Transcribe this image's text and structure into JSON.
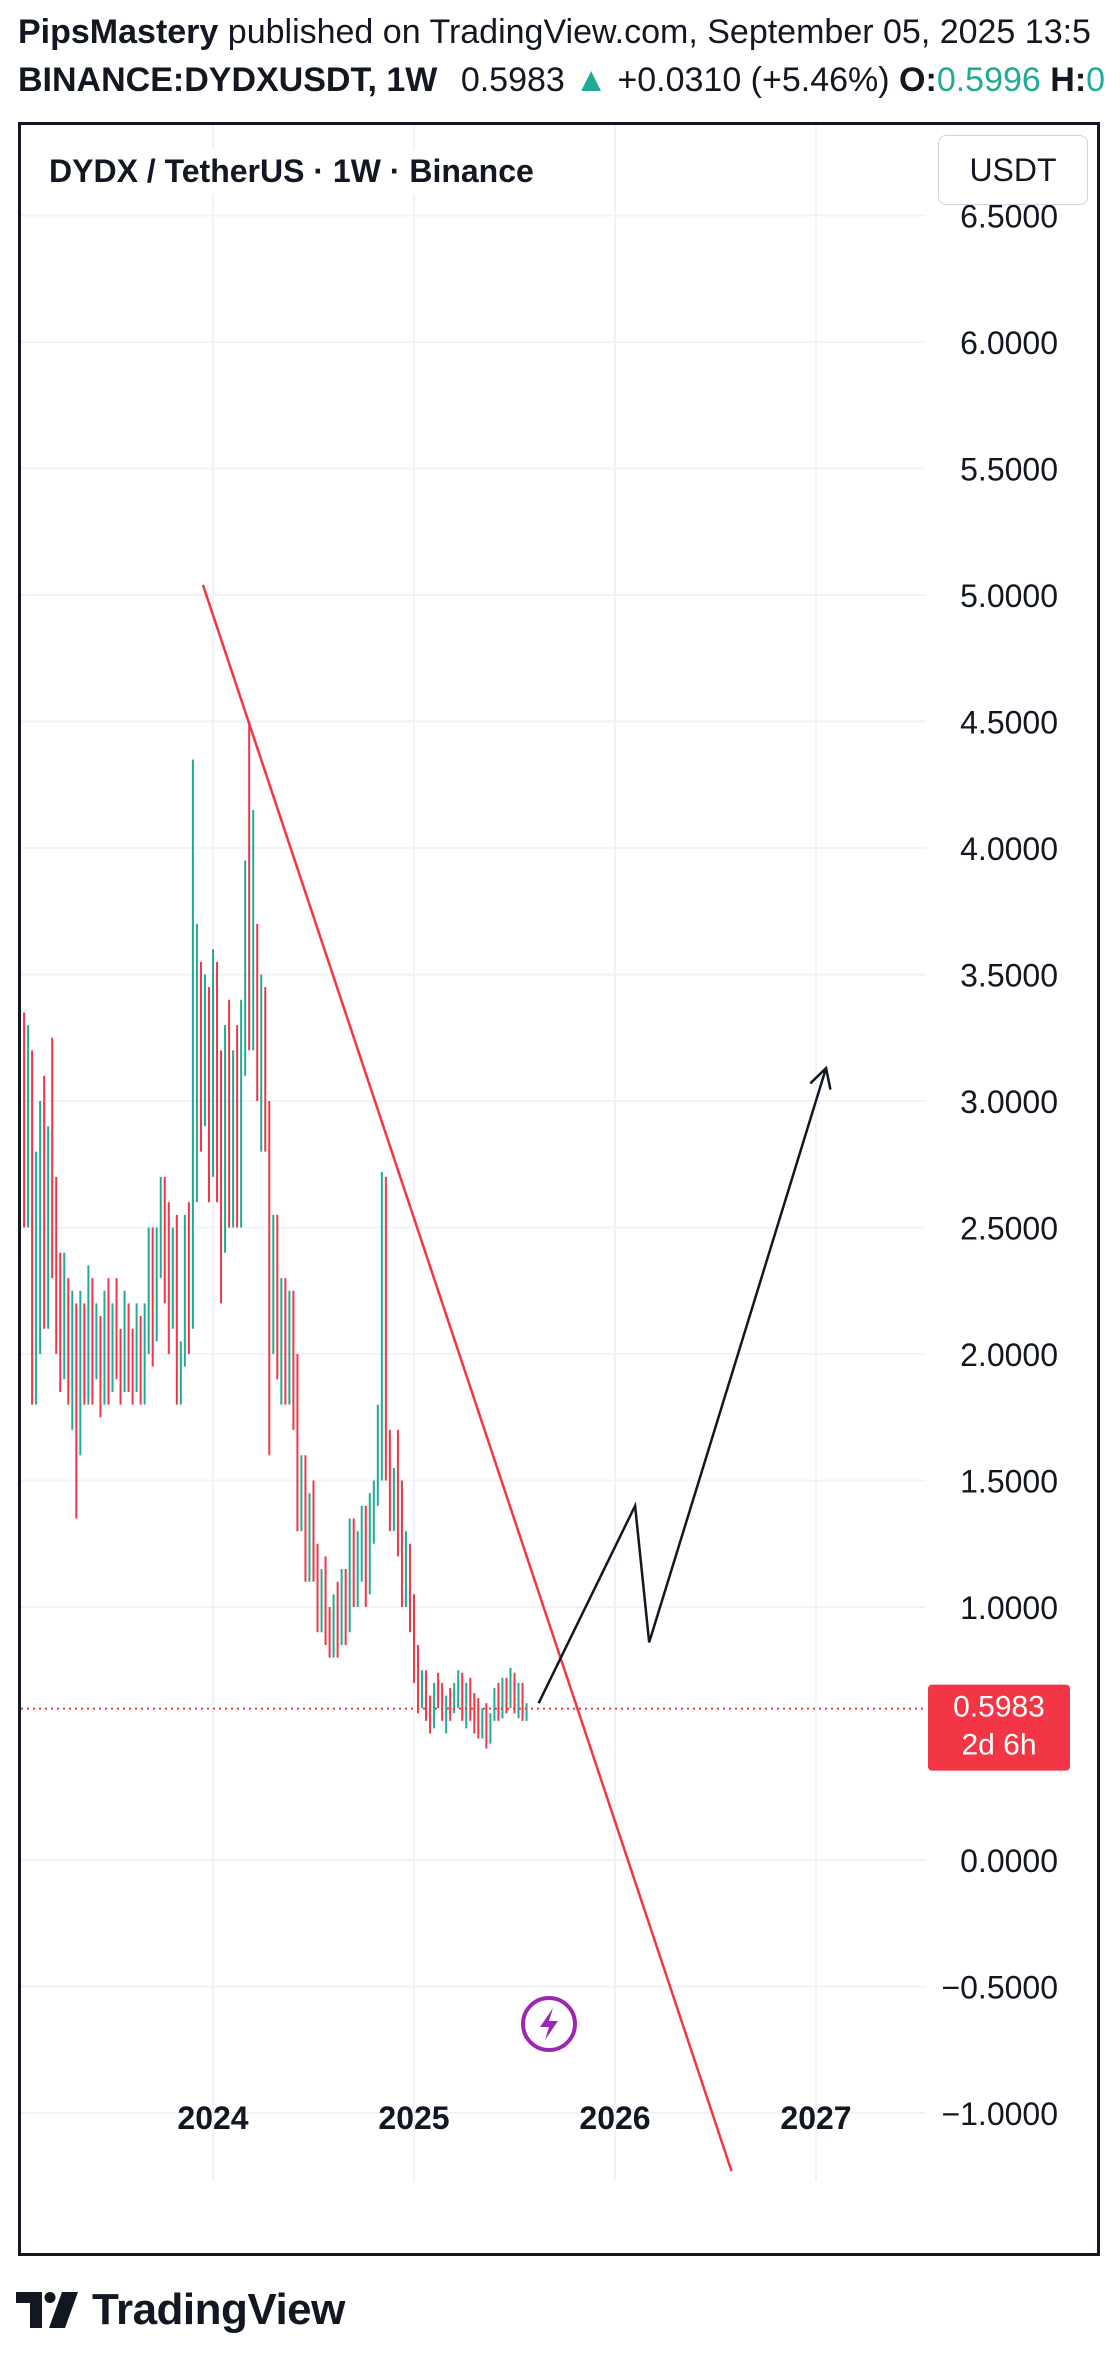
{
  "header": {
    "author": "PipsMastery",
    "published_text": "published on TradingView.com, September 05, 2025 13:5",
    "symbol": "BINANCE:DYDXUSDT, 1W",
    "price": "0.5983",
    "change": "+0.0310 (+5.46%)",
    "open_label": "O:",
    "open_value": "0.5996",
    "high_label": "H:",
    "high_value": "0"
  },
  "chart_title": "DYDX / TetherUS · 1W · Binance",
  "currency_button": "USDT",
  "price_tag": {
    "price": "0.5983",
    "countdown": "2d 6h"
  },
  "footer": {
    "brand": "TradingView"
  },
  "icons": {
    "up_arrow": "triangle-up-icon",
    "flash": "lightning-icon",
    "logo": "tradingview-logo-icon"
  },
  "colors": {
    "up": "#22ab94",
    "down": "#f23645",
    "trendline": "#f23645",
    "projection": "#131722",
    "price_tag": "#f23645",
    "flash": "#9c27b0"
  },
  "chart_data": {
    "type": "candlestick",
    "title": "DYDX / TetherUS · 1W · Binance",
    "interval": "1W",
    "price_scale_side": "right",
    "ylim": [
      -1.25,
      6.6
    ],
    "y_ticks": [
      "6.5000",
      "6.0000",
      "5.5000",
      "5.0000",
      "4.5000",
      "4.0000",
      "3.5000",
      "3.0000",
      "2.5000",
      "2.0000",
      "1.5000",
      "1.0000",
      "0.0000",
      "−0.5000",
      "−1.0000"
    ],
    "y_tick_values": [
      6.5,
      6.0,
      5.5,
      5.0,
      4.5,
      4.0,
      3.5,
      3.0,
      2.5,
      2.0,
      1.5,
      1.0,
      0.0,
      -0.5,
      -1.0
    ],
    "xlim": [
      2023.0,
      2027.3
    ],
    "x_ticks": [
      "2024",
      "2025",
      "2026",
      "2027"
    ],
    "x_tick_values": [
      2024,
      2025,
      2026,
      2027
    ],
    "grid": true,
    "last_price": 0.5983,
    "candles": [
      [
        2023.0,
        1.2,
        1.8,
        1.2,
        1.8
      ],
      [
        2023.02,
        1.8,
        2.6,
        1.7,
        2.5
      ],
      [
        2023.04,
        2.5,
        3.7,
        2.4,
        3.3
      ],
      [
        2023.06,
        3.3,
        3.35,
        2.5,
        2.7
      ],
      [
        2023.08,
        2.7,
        3.3,
        2.5,
        2.9
      ],
      [
        2023.1,
        2.9,
        3.2,
        1.8,
        2.1
      ],
      [
        2023.12,
        2.1,
        2.8,
        1.8,
        2.6
      ],
      [
        2023.14,
        2.6,
        3.0,
        2.0,
        2.8
      ],
      [
        2023.16,
        2.8,
        3.1,
        2.1,
        2.3
      ],
      [
        2023.18,
        2.3,
        2.9,
        2.1,
        2.7
      ],
      [
        2023.2,
        2.7,
        3.25,
        2.3,
        2.5
      ],
      [
        2023.22,
        2.5,
        2.7,
        2.0,
        2.3
      ],
      [
        2023.24,
        2.3,
        2.4,
        1.85,
        2.0
      ],
      [
        2023.26,
        2.0,
        2.4,
        1.9,
        2.25
      ],
      [
        2023.28,
        2.25,
        2.3,
        1.8,
        1.95
      ],
      [
        2023.3,
        1.95,
        2.25,
        1.7,
        2.15
      ],
      [
        2023.32,
        2.15,
        2.2,
        1.35,
        1.7
      ],
      [
        2023.34,
        1.7,
        2.25,
        1.6,
        2.15
      ],
      [
        2023.36,
        2.15,
        2.2,
        1.8,
        1.9
      ],
      [
        2023.38,
        1.9,
        2.35,
        1.8,
        2.25
      ],
      [
        2023.4,
        2.25,
        2.3,
        1.8,
        1.95
      ],
      [
        2023.42,
        1.95,
        2.2,
        1.9,
        2.1
      ],
      [
        2023.44,
        2.1,
        2.15,
        1.75,
        1.85
      ],
      [
        2023.46,
        1.85,
        2.25,
        1.8,
        2.15
      ],
      [
        2023.48,
        2.15,
        2.3,
        1.8,
        1.9
      ],
      [
        2023.5,
        1.9,
        2.2,
        1.85,
        2.05
      ],
      [
        2023.52,
        2.05,
        2.3,
        1.9,
        2.0
      ],
      [
        2023.54,
        2.0,
        2.1,
        1.8,
        1.95
      ],
      [
        2023.56,
        1.95,
        2.25,
        1.85,
        2.15
      ],
      [
        2023.58,
        2.15,
        2.2,
        1.85,
        1.95
      ],
      [
        2023.6,
        1.95,
        2.1,
        1.8,
        1.9
      ],
      [
        2023.62,
        1.9,
        2.2,
        1.85,
        2.1
      ],
      [
        2023.64,
        2.1,
        2.15,
        1.8,
        1.95
      ],
      [
        2023.66,
        1.95,
        2.2,
        1.8,
        2.05
      ],
      [
        2023.68,
        2.05,
        2.5,
        2.0,
        2.4
      ],
      [
        2023.7,
        2.4,
        2.5,
        1.95,
        2.1
      ],
      [
        2023.72,
        2.1,
        2.5,
        2.05,
        2.4
      ],
      [
        2023.74,
        2.4,
        2.7,
        2.3,
        2.6
      ],
      [
        2023.76,
        2.6,
        2.7,
        2.2,
        2.4
      ],
      [
        2023.78,
        2.4,
        2.6,
        2.0,
        2.2
      ],
      [
        2023.8,
        2.2,
        2.5,
        2.1,
        2.4
      ],
      [
        2023.82,
        2.4,
        2.55,
        1.8,
        1.85
      ],
      [
        2023.84,
        1.85,
        2.05,
        1.8,
        2.0
      ],
      [
        2023.86,
        2.0,
        2.55,
        1.95,
        2.5
      ],
      [
        2023.88,
        2.5,
        2.6,
        2.0,
        2.2
      ],
      [
        2023.9,
        2.2,
        4.35,
        2.1,
        3.2
      ],
      [
        2023.92,
        3.2,
        3.7,
        2.6,
        3.4
      ],
      [
        2023.94,
        3.4,
        3.55,
        2.8,
        3.0
      ],
      [
        2023.96,
        3.0,
        3.5,
        2.9,
        3.4
      ],
      [
        2023.98,
        3.4,
        3.45,
        2.6,
        2.8
      ],
      [
        2024.0,
        2.8,
        3.6,
        2.7,
        3.5
      ],
      [
        2024.02,
        3.5,
        3.55,
        2.6,
        2.9
      ],
      [
        2024.04,
        2.9,
        3.2,
        2.2,
        2.5
      ],
      [
        2024.06,
        2.5,
        3.3,
        2.4,
        3.2
      ],
      [
        2024.08,
        3.2,
        3.4,
        2.5,
        2.7
      ],
      [
        2024.1,
        2.7,
        3.2,
        2.5,
        3.0
      ],
      [
        2024.12,
        3.0,
        3.3,
        2.5,
        2.6
      ],
      [
        2024.14,
        2.6,
        3.4,
        2.5,
        3.3
      ],
      [
        2024.16,
        3.3,
        3.95,
        3.1,
        3.8
      ],
      [
        2024.18,
        3.8,
        4.5,
        3.2,
        3.3
      ],
      [
        2024.2,
        3.3,
        4.15,
        3.2,
        3.6
      ],
      [
        2024.22,
        3.6,
        3.7,
        3.0,
        3.2
      ],
      [
        2024.24,
        3.2,
        3.5,
        2.8,
        3.4
      ],
      [
        2024.26,
        3.4,
        3.45,
        2.8,
        2.95
      ],
      [
        2024.28,
        2.95,
        3.0,
        1.6,
        2.2
      ],
      [
        2024.3,
        2.2,
        2.55,
        2.0,
        2.5
      ],
      [
        2024.32,
        2.5,
        2.55,
        1.9,
        2.0
      ],
      [
        2024.34,
        2.0,
        2.3,
        1.8,
        2.2
      ],
      [
        2024.36,
        2.2,
        2.3,
        1.8,
        1.9
      ],
      [
        2024.38,
        1.9,
        2.25,
        1.8,
        2.2
      ],
      [
        2024.4,
        2.2,
        2.25,
        1.7,
        1.8
      ],
      [
        2024.42,
        1.8,
        2.0,
        1.3,
        1.4
      ],
      [
        2024.44,
        1.4,
        1.6,
        1.3,
        1.55
      ],
      [
        2024.46,
        1.55,
        1.6,
        1.1,
        1.2
      ],
      [
        2024.48,
        1.2,
        1.45,
        1.1,
        1.4
      ],
      [
        2024.5,
        1.4,
        1.5,
        1.1,
        1.2
      ],
      [
        2024.52,
        1.2,
        1.25,
        0.9,
        1.0
      ],
      [
        2024.54,
        1.0,
        1.15,
        0.9,
        1.1
      ],
      [
        2024.56,
        1.1,
        1.2,
        0.85,
        0.95
      ],
      [
        2024.58,
        0.95,
        1.0,
        0.8,
        0.9
      ],
      [
        2024.6,
        0.9,
        1.05,
        0.8,
        1.0
      ],
      [
        2024.62,
        1.0,
        1.1,
        0.8,
        0.9
      ],
      [
        2024.64,
        0.9,
        1.15,
        0.85,
        1.1
      ],
      [
        2024.66,
        1.1,
        1.15,
        0.85,
        0.95
      ],
      [
        2024.68,
        0.95,
        1.35,
        0.9,
        1.3
      ],
      [
        2024.7,
        1.3,
        1.35,
        1.0,
        1.05
      ],
      [
        2024.72,
        1.05,
        1.3,
        1.0,
        1.2
      ],
      [
        2024.74,
        1.2,
        1.4,
        1.1,
        1.3
      ],
      [
        2024.76,
        1.3,
        1.4,
        1.0,
        1.1
      ],
      [
        2024.78,
        1.1,
        1.45,
        1.05,
        1.4
      ],
      [
        2024.8,
        1.4,
        1.5,
        1.25,
        1.45
      ],
      [
        2024.82,
        1.45,
        1.8,
        1.4,
        1.6
      ],
      [
        2024.84,
        1.6,
        2.72,
        1.5,
        2.3
      ],
      [
        2024.86,
        2.3,
        2.7,
        1.5,
        1.6
      ],
      [
        2024.88,
        1.6,
        1.7,
        1.3,
        1.4
      ],
      [
        2024.9,
        1.4,
        1.55,
        1.3,
        1.5
      ],
      [
        2024.92,
        1.5,
        1.7,
        1.2,
        1.3
      ],
      [
        2024.94,
        1.3,
        1.5,
        1.0,
        1.1
      ],
      [
        2024.96,
        1.1,
        1.3,
        1.0,
        1.2
      ],
      [
        2024.98,
        1.2,
        1.25,
        0.9,
        1.0
      ],
      [
        2025.0,
        1.0,
        1.05,
        0.7,
        0.78
      ],
      [
        2025.02,
        0.78,
        0.85,
        0.58,
        0.62
      ],
      [
        2025.04,
        0.62,
        0.75,
        0.6,
        0.72
      ],
      [
        2025.06,
        0.72,
        0.75,
        0.55,
        0.6
      ],
      [
        2025.08,
        0.6,
        0.65,
        0.5,
        0.55
      ],
      [
        2025.1,
        0.55,
        0.7,
        0.52,
        0.68
      ],
      [
        2025.12,
        0.68,
        0.74,
        0.6,
        0.66
      ],
      [
        2025.14,
        0.66,
        0.7,
        0.55,
        0.58
      ],
      [
        2025.16,
        0.58,
        0.65,
        0.5,
        0.62
      ],
      [
        2025.18,
        0.62,
        0.68,
        0.55,
        0.6
      ],
      [
        2025.2,
        0.6,
        0.7,
        0.58,
        0.66
      ],
      [
        2025.22,
        0.66,
        0.75,
        0.6,
        0.7
      ],
      [
        2025.24,
        0.7,
        0.74,
        0.55,
        0.58
      ],
      [
        2025.26,
        0.58,
        0.7,
        0.52,
        0.68
      ],
      [
        2025.28,
        0.68,
        0.72,
        0.55,
        0.6
      ],
      [
        2025.3,
        0.6,
        0.66,
        0.5,
        0.55
      ],
      [
        2025.32,
        0.55,
        0.64,
        0.48,
        0.52
      ],
      [
        2025.34,
        0.52,
        0.6,
        0.48,
        0.58
      ],
      [
        2025.36,
        0.58,
        0.62,
        0.44,
        0.48
      ],
      [
        2025.38,
        0.48,
        0.58,
        0.46,
        0.56
      ],
      [
        2025.4,
        0.56,
        0.68,
        0.55,
        0.65
      ],
      [
        2025.42,
        0.65,
        0.7,
        0.55,
        0.58
      ],
      [
        2025.44,
        0.58,
        0.72,
        0.56,
        0.7
      ],
      [
        2025.46,
        0.7,
        0.72,
        0.58,
        0.62
      ],
      [
        2025.48,
        0.62,
        0.76,
        0.6,
        0.72
      ],
      [
        2025.5,
        0.72,
        0.74,
        0.58,
        0.62
      ],
      [
        2025.52,
        0.62,
        0.7,
        0.56,
        0.65
      ],
      [
        2025.54,
        0.65,
        0.7,
        0.55,
        0.57
      ],
      [
        2025.56,
        0.57,
        0.62,
        0.55,
        0.598
      ]
    ],
    "drawings": [
      {
        "type": "trendline",
        "color": "#f23645",
        "points": [
          [
            2023.95,
            5.04
          ],
          [
            2026.58,
            -1.23
          ]
        ]
      },
      {
        "type": "arrow_path",
        "color": "#131722",
        "points": [
          [
            2025.62,
            0.62
          ],
          [
            2026.1,
            1.4
          ],
          [
            2026.17,
            0.86
          ],
          [
            2027.05,
            3.13
          ]
        ]
      }
    ]
  }
}
